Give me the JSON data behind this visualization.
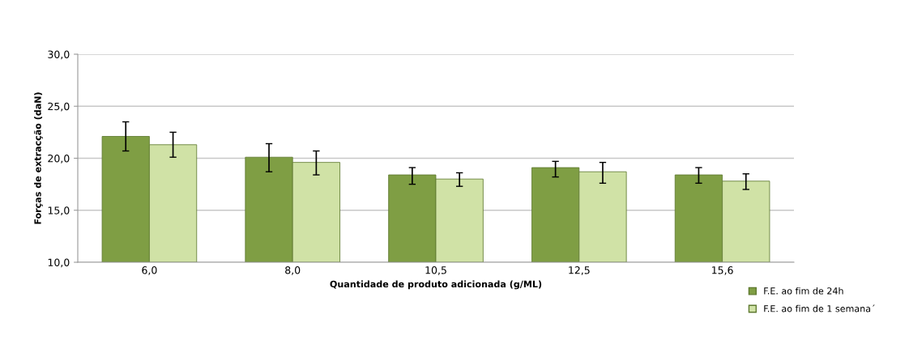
{
  "chart_data": {
    "type": "bar",
    "xlabel": "Quantidade de produto adicionada (g/ML)",
    "ylabel": "Forças de extracção (daN)",
    "categories": [
      "6,0",
      "8,0",
      "10,5",
      "12,5",
      "15,6"
    ],
    "series": [
      {
        "name": "F.E. ao fim de 24h",
        "color": "#7f9e44",
        "values": [
          22.1,
          20.1,
          18.4,
          19.1,
          18.4
        ],
        "errors": [
          [
            20.7,
            23.5
          ],
          [
            18.7,
            21.4
          ],
          [
            17.5,
            19.1
          ],
          [
            18.2,
            19.7
          ],
          [
            17.6,
            19.1
          ]
        ]
      },
      {
        "name": "F.E. ao fim de 1 semana´",
        "color": "#d0e2a6",
        "values": [
          21.3,
          19.6,
          18.0,
          18.7,
          17.8
        ],
        "errors": [
          [
            20.1,
            22.5
          ],
          [
            18.4,
            20.7
          ],
          [
            17.3,
            18.6
          ],
          [
            17.6,
            19.6
          ],
          [
            17.0,
            18.5
          ]
        ]
      }
    ],
    "ylim": [
      10,
      30
    ],
    "yticks": [
      {
        "value": 10,
        "label": "10,0"
      },
      {
        "value": 15,
        "label": "15,0"
      },
      {
        "value": 20,
        "label": "20,0"
      },
      {
        "value": 25,
        "label": "25,0"
      },
      {
        "value": 30,
        "label": "30,0"
      }
    ],
    "grid": "y",
    "legend": "bottom right"
  }
}
